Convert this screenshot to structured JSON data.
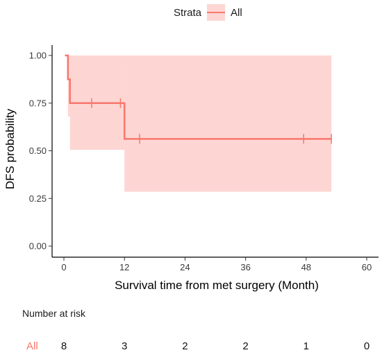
{
  "legend": {
    "title": "Strata",
    "label": "All"
  },
  "colors": {
    "curve": "#F8766D",
    "ci_fill": "rgba(248,118,109,0.3)",
    "axis": "#000000"
  },
  "chart_data": {
    "type": "line",
    "subtype": "kaplan-meier",
    "xlabel": "Survival time from met surgery (Month)",
    "ylabel": "DFS probability",
    "xlim": [
      0,
      60
    ],
    "ylim": [
      0,
      1
    ],
    "x_ticks": [
      0,
      12,
      24,
      36,
      48,
      60
    ],
    "y_ticks": [
      0.0,
      0.25,
      0.5,
      0.75,
      1.0
    ],
    "y_tick_labels": [
      "0.00",
      "0.25",
      "0.50",
      "0.75",
      "1.00"
    ],
    "grid": false,
    "legend_position": "top",
    "series": [
      {
        "name": "All",
        "steps": [
          {
            "x": 0.2,
            "y": 1.0
          },
          {
            "x": 0.8,
            "y": 0.875
          },
          {
            "x": 1.2,
            "y": 0.75
          },
          {
            "x": 12.0,
            "y": 0.5625
          },
          {
            "x": 53.0,
            "y": 0.5625
          }
        ],
        "ci": [
          {
            "x0": 0.2,
            "x1": 0.8,
            "lower": 1.0,
            "upper": 1.0
          },
          {
            "x0": 0.8,
            "x1": 1.2,
            "lower": 0.68,
            "upper": 1.0
          },
          {
            "x0": 1.2,
            "x1": 12.0,
            "lower": 0.505,
            "upper": 1.0
          },
          {
            "x0": 12.0,
            "x1": 53.0,
            "lower": 0.285,
            "upper": 1.0
          }
        ],
        "censored": [
          {
            "x": 5.5,
            "y": 0.75
          },
          {
            "x": 11.2,
            "y": 0.75
          },
          {
            "x": 15.0,
            "y": 0.5625
          },
          {
            "x": 47.5,
            "y": 0.5625
          },
          {
            "x": 53.0,
            "y": 0.5625
          }
        ]
      }
    ]
  },
  "risk_table": {
    "title": "Number at risk",
    "strata_label": "All",
    "times": [
      0,
      12,
      24,
      36,
      48,
      60
    ],
    "counts": [
      "8",
      "3",
      "2",
      "2",
      "1",
      "0"
    ]
  }
}
